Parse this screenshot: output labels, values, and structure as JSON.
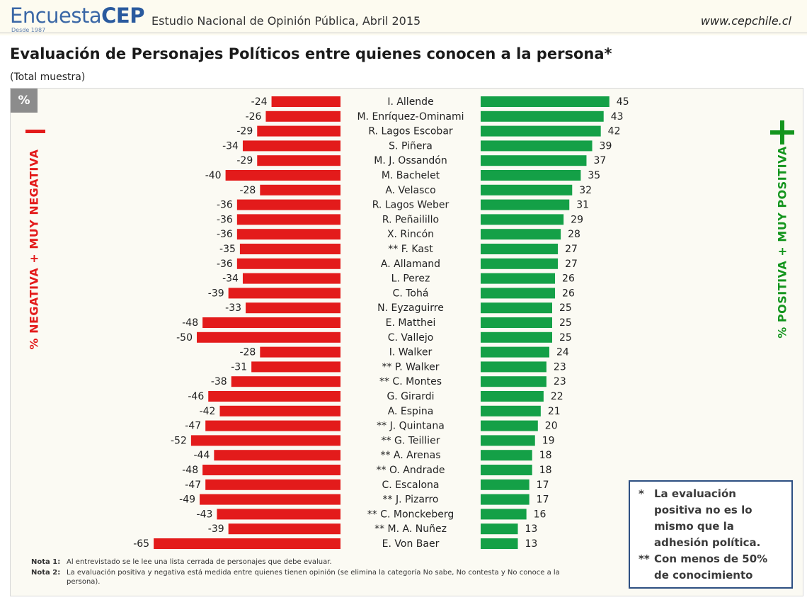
{
  "header": {
    "logo_light": "Encuesta",
    "logo_bold": "CEP",
    "since": "Desde 1987",
    "study": "Estudio Nacional de Opinión Pública, Abril 2015",
    "website": "www.cepchile.cl"
  },
  "title": "Evaluación de Personajes Políticos entre quienes conocen a la persona*",
  "subtitle": "(Total muestra)",
  "percent_badge": "%",
  "negative_axis_label": "% NEGATIVA + MUY NEGATIVA",
  "positive_axis_label": "% POSITIVA + MUY POSITIVA",
  "notes": [
    {
      "label": "Nota 1:",
      "text": "Al entrevistado se le lee una lista cerrada de personajes que debe evaluar."
    },
    {
      "label": "Nota 2:",
      "text": "La evaluación positiva y negativa está medida entre quienes tienen opinión (se elimina la categoría No sabe, No contesta y No conoce a la persona)."
    }
  ],
  "legend": [
    {
      "mark": "*",
      "text": "La evaluación positiva no es lo mismo que la adhesión política."
    },
    {
      "mark": "**",
      "text": "Con menos de 50% de conocimiento"
    }
  ],
  "colors": {
    "negative": "#e31b1b",
    "positive": "#14a047"
  },
  "chart_data": {
    "type": "bar",
    "orientation": "horizontal-diverging",
    "categories": [
      "I. Allende",
      "M. Enríquez-Ominami",
      "R. Lagos Escobar",
      "S. Piñera",
      "M. J. Ossandón",
      "M. Bachelet",
      "A. Velasco",
      "R. Lagos Weber",
      "R. Peñailillo",
      "X. Rincón",
      "** F. Kast",
      "A. Allamand",
      "L. Perez",
      "C. Tohá",
      "N. Eyzaguirre",
      "E. Matthei",
      "C. Vallejo",
      "I. Walker",
      "** P. Walker",
      "** C. Montes",
      "G. Girardi",
      "A. Espina",
      "** J. Quintana",
      "** G. Teillier",
      "** A. Arenas",
      "** O. Andrade",
      "C. Escalona",
      "** J. Pizarro",
      "** C. Monckeberg",
      "** M. A. Nuñez",
      "E. Von Baer"
    ],
    "series": [
      {
        "name": "% NEGATIVA + MUY NEGATIVA",
        "values": [
          -24,
          -26,
          -29,
          -34,
          -29,
          -40,
          -28,
          -36,
          -36,
          -36,
          -35,
          -36,
          -34,
          -39,
          -33,
          -48,
          -50,
          -28,
          -31,
          -38,
          -46,
          -42,
          -47,
          -52,
          -44,
          -48,
          -47,
          -49,
          -43,
          -39,
          -65
        ]
      },
      {
        "name": "% POSITIVA + MUY POSITIVA",
        "values": [
          45,
          43,
          42,
          39,
          37,
          35,
          32,
          31,
          29,
          28,
          27,
          27,
          26,
          26,
          25,
          25,
          25,
          24,
          23,
          23,
          22,
          21,
          20,
          19,
          18,
          18,
          17,
          17,
          16,
          13,
          13
        ]
      }
    ]
  }
}
